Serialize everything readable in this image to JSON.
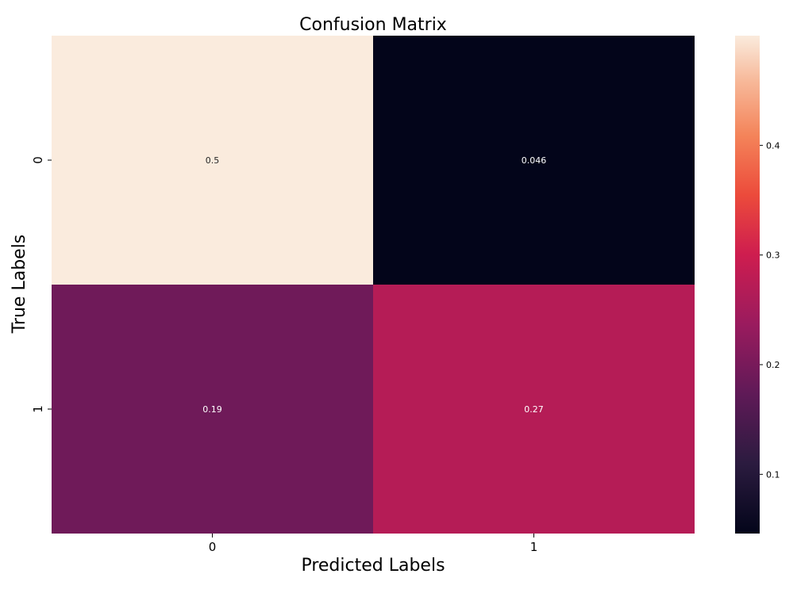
{
  "chart_data": {
    "type": "heatmap",
    "title": "Confusion Matrix",
    "xlabel": "Predicted Labels",
    "ylabel": "True Labels",
    "x_categories": [
      "0",
      "1"
    ],
    "y_categories": [
      "0",
      "1"
    ],
    "values": [
      [
        0.5,
        0.046
      ],
      [
        0.19,
        0.27
      ]
    ],
    "annotations": [
      [
        "0.5",
        "0.046"
      ],
      [
        "0.19",
        "0.27"
      ]
    ],
    "colormap": "rocket",
    "colorbar": {
      "range": [
        0.046,
        0.5
      ],
      "ticks": [
        0.1,
        0.2,
        0.3,
        0.4
      ],
      "tick_labels": [
        "0.1",
        "0.2",
        "0.3",
        "0.4"
      ]
    },
    "grid": false,
    "legend": "colorbar-right"
  }
}
